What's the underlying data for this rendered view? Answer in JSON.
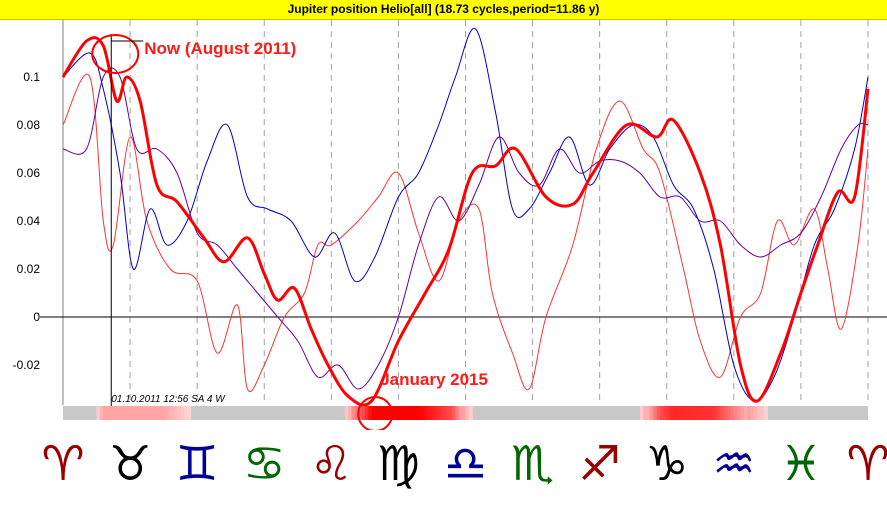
{
  "window": {
    "title": "Jupiter position Helio[all]  (18.73 cycles,period=11.86 y)"
  },
  "chart_data": {
    "type": "line",
    "title": "Jupiter position Helio[all]  (18.73 cycles,period=11.86 y)",
    "xlabel": "",
    "ylabel": "",
    "ylim": [
      -0.04,
      0.12
    ],
    "y_ticks": [
      "0.1",
      "0.08",
      "0.06",
      "0.04",
      "0.02",
      "0",
      "-0.02"
    ],
    "x_unit": "zodiac sign index (Aries=0 … Pisces=11, Aries=12)",
    "grid": "vertical dashed lines at each sign boundary",
    "series": [
      {
        "color": "#ff0000",
        "width": 3,
        "points": [
          [
            0,
            0.1
          ],
          [
            0.35,
            0.115
          ],
          [
            0.6,
            0.113
          ],
          [
            0.8,
            0.09
          ],
          [
            0.95,
            0.1
          ],
          [
            1.15,
            0.09
          ],
          [
            1.4,
            0.055
          ],
          [
            1.7,
            0.048
          ],
          [
            2.1,
            0.033
          ],
          [
            2.4,
            0.023
          ],
          [
            2.75,
            0.033
          ],
          [
            3.0,
            0.018
          ],
          [
            3.2,
            0.007
          ],
          [
            3.45,
            0.012
          ],
          [
            3.7,
            -0.005
          ],
          [
            3.95,
            -0.02
          ],
          [
            4.25,
            -0.033
          ],
          [
            4.6,
            -0.035
          ],
          [
            5.0,
            -0.01
          ],
          [
            5.4,
            0.01
          ],
          [
            5.75,
            0.028
          ],
          [
            6.1,
            0.06
          ],
          [
            6.45,
            0.063
          ],
          [
            6.75,
            0.07
          ],
          [
            7.2,
            0.05
          ],
          [
            7.6,
            0.047
          ],
          [
            7.9,
            0.06
          ],
          [
            8.4,
            0.08
          ],
          [
            8.85,
            0.075
          ],
          [
            9.1,
            0.082
          ],
          [
            9.5,
            0.06
          ],
          [
            9.8,
            0.03
          ],
          [
            10.1,
            -0.02
          ],
          [
            10.35,
            -0.035
          ],
          [
            10.7,
            -0.015
          ],
          [
            11.0,
            0.01
          ],
          [
            11.25,
            0.03
          ],
          [
            11.55,
            0.052
          ],
          [
            11.8,
            0.05
          ],
          [
            12.0,
            0.095
          ]
        ]
      },
      {
        "color": "#ff3333",
        "width": 1,
        "points": [
          [
            0,
            0.08
          ],
          [
            0.4,
            0.1
          ],
          [
            0.6,
            0.04
          ],
          [
            0.75,
            0.03
          ],
          [
            1.0,
            0.075
          ],
          [
            1.25,
            0.04
          ],
          [
            1.6,
            0.02
          ],
          [
            2.0,
            0.015
          ],
          [
            2.3,
            -0.015
          ],
          [
            2.6,
            0.005
          ],
          [
            2.75,
            -0.03
          ],
          [
            3.0,
            -0.02
          ],
          [
            3.3,
            0.0
          ],
          [
            3.6,
            0.01
          ],
          [
            3.8,
            0.03
          ],
          [
            4.0,
            0.03
          ],
          [
            4.4,
            0.04
          ],
          [
            4.7,
            0.05
          ],
          [
            5.0,
            0.06
          ],
          [
            5.3,
            0.035
          ],
          [
            5.6,
            0.015
          ],
          [
            5.9,
            0.04
          ],
          [
            6.2,
            0.045
          ],
          [
            6.4,
            0.01
          ],
          [
            6.7,
            -0.015
          ],
          [
            6.95,
            -0.03
          ],
          [
            7.2,
            0.0
          ],
          [
            7.6,
            0.03
          ],
          [
            7.95,
            0.07
          ],
          [
            8.3,
            0.09
          ],
          [
            8.65,
            0.07
          ],
          [
            8.9,
            0.06
          ],
          [
            9.25,
            0.02
          ],
          [
            9.5,
            -0.01
          ],
          [
            9.8,
            -0.025
          ],
          [
            10.1,
            0.0
          ],
          [
            10.4,
            0.01
          ],
          [
            10.65,
            0.04
          ],
          [
            10.9,
            0.03
          ],
          [
            11.2,
            0.045
          ],
          [
            11.4,
            0.02
          ],
          [
            11.6,
            -0.005
          ],
          [
            11.85,
            0.03
          ],
          [
            12.0,
            0.07
          ]
        ]
      },
      {
        "color": "#0000cc",
        "width": 1,
        "points": [
          [
            0,
            0.1
          ],
          [
            0.4,
            0.11
          ],
          [
            0.6,
            0.095
          ],
          [
            0.85,
            0.06
          ],
          [
            1.05,
            0.02
          ],
          [
            1.3,
            0.045
          ],
          [
            1.55,
            0.03
          ],
          [
            1.85,
            0.04
          ],
          [
            2.15,
            0.065
          ],
          [
            2.45,
            0.08
          ],
          [
            2.75,
            0.05
          ],
          [
            3.05,
            0.045
          ],
          [
            3.4,
            0.04
          ],
          [
            3.75,
            0.025
          ],
          [
            4.05,
            0.035
          ],
          [
            4.35,
            0.015
          ],
          [
            4.65,
            0.025
          ],
          [
            5.0,
            0.05
          ],
          [
            5.3,
            0.06
          ],
          [
            5.6,
            0.08
          ],
          [
            5.85,
            0.1
          ],
          [
            6.15,
            0.12
          ],
          [
            6.45,
            0.085
          ],
          [
            6.7,
            0.045
          ],
          [
            6.95,
            0.045
          ],
          [
            7.25,
            0.06
          ],
          [
            7.55,
            0.075
          ],
          [
            7.85,
            0.055
          ],
          [
            8.15,
            0.07
          ],
          [
            8.5,
            0.08
          ],
          [
            8.8,
            0.075
          ],
          [
            9.1,
            0.055
          ],
          [
            9.4,
            0.045
          ],
          [
            9.7,
            0.02
          ],
          [
            10.0,
            -0.02
          ],
          [
            10.3,
            -0.035
          ],
          [
            10.6,
            -0.025
          ],
          [
            10.9,
            0.0
          ],
          [
            11.2,
            0.03
          ],
          [
            11.5,
            0.045
          ],
          [
            11.8,
            0.07
          ],
          [
            12.0,
            0.1
          ]
        ]
      },
      {
        "color": "#660099",
        "width": 1,
        "points": [
          [
            0,
            0.07
          ],
          [
            0.35,
            0.07
          ],
          [
            0.6,
            0.1
          ],
          [
            0.85,
            0.1
          ],
          [
            1.1,
            0.07
          ],
          [
            1.4,
            0.07
          ],
          [
            1.7,
            0.06
          ],
          [
            2.0,
            0.035
          ],
          [
            2.3,
            0.03
          ],
          [
            2.6,
            0.02
          ],
          [
            2.9,
            0.01
          ],
          [
            3.2,
            0.0
          ],
          [
            3.5,
            -0.01
          ],
          [
            3.8,
            -0.025
          ],
          [
            4.1,
            -0.02
          ],
          [
            4.4,
            -0.03
          ],
          [
            4.7,
            -0.02
          ],
          [
            5.0,
            0.0
          ],
          [
            5.3,
            0.03
          ],
          [
            5.6,
            0.05
          ],
          [
            5.9,
            0.04
          ],
          [
            6.2,
            0.055
          ],
          [
            6.5,
            0.075
          ],
          [
            6.8,
            0.06
          ],
          [
            7.1,
            0.055
          ],
          [
            7.4,
            0.07
          ],
          [
            7.7,
            0.06
          ],
          [
            8.0,
            0.065
          ],
          [
            8.3,
            0.065
          ],
          [
            8.6,
            0.06
          ],
          [
            8.9,
            0.05
          ],
          [
            9.2,
            0.05
          ],
          [
            9.5,
            0.04
          ],
          [
            9.8,
            0.04
          ],
          [
            10.1,
            0.03
          ],
          [
            10.4,
            0.025
          ],
          [
            10.7,
            0.03
          ],
          [
            11.0,
            0.035
          ],
          [
            11.3,
            0.05
          ],
          [
            11.6,
            0.07
          ],
          [
            11.85,
            0.08
          ],
          [
            12.0,
            0.08
          ]
        ]
      }
    ],
    "annotations": {
      "now_label": "Now (August 2011)",
      "now_x": 0.6,
      "jan_label": "January 2015",
      "jan_x": 4.55,
      "cursor_stamp": "01.10.2011  12:56 SA  4 W"
    },
    "strength_band": [
      [
        0.0,
        0.0
      ],
      [
        0.5,
        0.0
      ],
      [
        0.6,
        0.25
      ],
      [
        1.2,
        0.25
      ],
      [
        1.5,
        0.25
      ],
      [
        1.9,
        0.0
      ],
      [
        4.2,
        0.0
      ],
      [
        4.3,
        0.4
      ],
      [
        4.5,
        0.75
      ],
      [
        4.6,
        1.0
      ],
      [
        5.3,
        1.0
      ],
      [
        5.8,
        0.7
      ],
      [
        6.0,
        0.2
      ],
      [
        6.1,
        0.0
      ],
      [
        8.6,
        0.0
      ],
      [
        8.7,
        0.25
      ],
      [
        8.9,
        0.7
      ],
      [
        9.1,
        0.85
      ],
      [
        9.7,
        0.8
      ],
      [
        10.1,
        0.4
      ],
      [
        10.5,
        0.0
      ],
      [
        12.0,
        0.0
      ]
    ]
  },
  "zodiac": [
    {
      "glyph": "♈",
      "color": "#990000"
    },
    {
      "glyph": "♉",
      "color": "#000000"
    },
    {
      "glyph": "♊",
      "color": "#000099"
    },
    {
      "glyph": "♋",
      "color": "#006600"
    },
    {
      "glyph": "♌",
      "color": "#990000"
    },
    {
      "glyph": "♍",
      "color": "#000000"
    },
    {
      "glyph": "♎",
      "color": "#000099"
    },
    {
      "glyph": "♏",
      "color": "#006600"
    },
    {
      "glyph": "♐",
      "color": "#990000"
    },
    {
      "glyph": "♑",
      "color": "#000000"
    },
    {
      "glyph": "♒",
      "color": "#000099"
    },
    {
      "glyph": "♓",
      "color": "#006600"
    },
    {
      "glyph": "♈",
      "color": "#990000"
    }
  ]
}
